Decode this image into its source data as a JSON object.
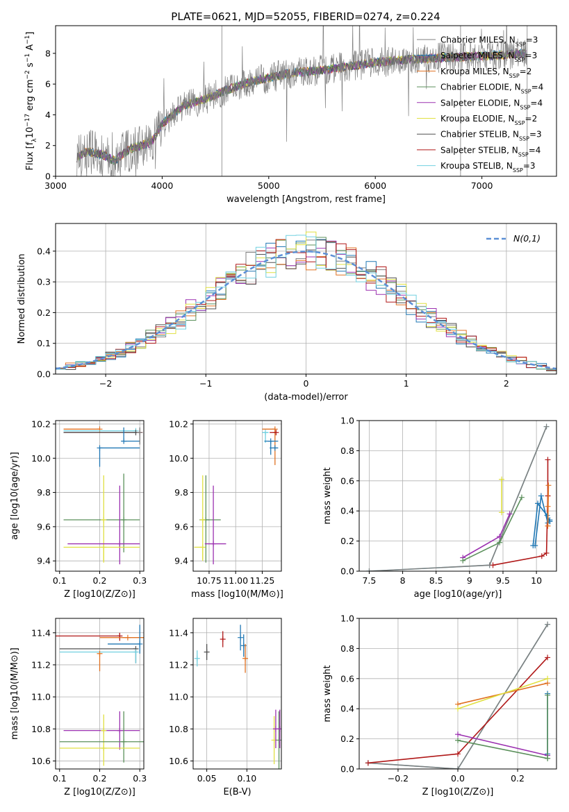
{
  "figure": {
    "title": "PLATE=0621, MJD=52055, FIBERID=0274, z=0.224"
  },
  "series_colors": {
    "Chabrier MILES": "#7f7f7f",
    "Salpeter MILES": "#1f77b4",
    "Kroupa MILES": "#e07020",
    "Chabrier ELODIE": "#5a8f5a",
    "Salpeter ELODIE": "#9b30b0",
    "Kroupa ELODIE": "#e0e040",
    "Chabrier STELIB": "#505050",
    "Salpeter STELIB": "#b01818",
    "Kroupa STELIB": "#70d0e0"
  },
  "chart_data": [
    {
      "id": "spectrum",
      "type": "line",
      "xlabel": "wavelength [Angstrom, rest frame]",
      "ylabel": "Flux [f_λ 10^-17 erg cm^-2 s^-1 A^-1]",
      "xlim": [
        3000,
        7700
      ],
      "ylim": [
        0,
        9.8
      ],
      "xticks": [
        3000,
        4000,
        5000,
        6000,
        7000
      ],
      "yticks": [
        0,
        2,
        4,
        6,
        8
      ],
      "grid": false,
      "legend_position": "right",
      "legend": [
        {
          "name": "Chabrier MILES",
          "n_ssp": "3"
        },
        {
          "name": "Salpeter MILES",
          "n_ssp": "3"
        },
        {
          "name": "Kroupa MILES",
          "n_ssp": "2"
        },
        {
          "name": "Chabrier ELODIE",
          "n_ssp": "4"
        },
        {
          "name": "Salpeter ELODIE",
          "n_ssp": "4"
        },
        {
          "name": "Kroupa ELODIE",
          "n_ssp": "2"
        },
        {
          "name": "Chabrier STELIB",
          "n_ssp": "3"
        },
        {
          "name": "Salpeter STELIB",
          "n_ssp": "4"
        },
        {
          "name": "Kroupa STELIB",
          "n_ssp": "3"
        }
      ],
      "continuum": {
        "x": [
          3200,
          3300,
          3450,
          3550,
          3700,
          3900,
          4000,
          4200,
          4400,
          4600,
          4800,
          5000,
          5200,
          5500,
          5800,
          6000,
          6300,
          6600,
          6900,
          7200,
          7400
        ],
        "y": [
          1.2,
          1.6,
          1.4,
          1.0,
          1.8,
          2.2,
          3.4,
          4.6,
          5.0,
          5.6,
          6.1,
          6.4,
          6.7,
          6.9,
          7.2,
          7.4,
          7.6,
          7.7,
          7.8,
          7.9,
          8.0
        ]
      }
    },
    {
      "id": "residual_histogram",
      "type": "line",
      "xlabel": "(data-model)/error",
      "ylabel": "Normed distribution",
      "xlim": [
        -2.5,
        2.5
      ],
      "ylim": [
        0,
        0.49
      ],
      "xticks": [
        -2,
        -1,
        0,
        1,
        2
      ],
      "yticks": [
        0.0,
        0.1,
        0.2,
        0.3,
        0.4
      ],
      "grid": true,
      "legend_position": "top-right",
      "reference_label": "N(0,1)",
      "bin_width": 0.1,
      "bin_start": -2.5
    },
    {
      "id": "age_vs_Z",
      "type": "scatter",
      "xlabel": "Z [log10(Z/Z⊙)]",
      "ylabel": "age [log10(age/yr)]",
      "xlim": [
        0.09,
        0.31
      ],
      "ylim": [
        9.34,
        10.22
      ],
      "xticks": [
        0.1,
        0.2,
        0.3
      ],
      "yticks": [
        9.4,
        9.6,
        9.8,
        10.0,
        10.2
      ],
      "points": [
        {
          "series": "Kroupa MILES",
          "x": 0.2,
          "y": 10.17,
          "xerr": [
            0.09,
            0.0
          ],
          "yerr": [
            0.0,
            0.0
          ]
        },
        {
          "series": "Salpeter STELIB",
          "x": 0.3,
          "y": 10.15,
          "xerr": [
            0.19,
            0.0
          ],
          "yerr": [
            0.0,
            0.0
          ]
        },
        {
          "series": "Kroupa STELIB",
          "x": 0.29,
          "y": 10.16,
          "xerr": [
            0.18,
            0.0
          ],
          "yerr": [
            0.0,
            0.0
          ]
        },
        {
          "series": "Chabrier STELIB",
          "x": 0.29,
          "y": 10.15,
          "xerr": [
            0.18,
            0.0
          ],
          "yerr": [
            0.0,
            0.0
          ]
        },
        {
          "series": "Salpeter MILES",
          "x": 0.26,
          "y": 10.1,
          "xerr": [
            0.0,
            0.04
          ],
          "yerr": [
            0.0,
            0.08
          ]
        },
        {
          "series": "Chabrier MILES",
          "x": 0.3,
          "y": 10.15,
          "xerr": [
            0.0,
            0.0
          ],
          "yerr": [
            0.07,
            0.03
          ]
        },
        {
          "series": "Salpeter MILES",
          "x": 0.2,
          "y": 10.06,
          "xerr": [
            0.0,
            0.1
          ],
          "yerr": [
            0.11,
            0.0
          ]
        },
        {
          "series": "Chabrier ELODIE",
          "x": 0.26,
          "y": 9.64,
          "xerr": [
            0.15,
            0.04
          ],
          "yerr": [
            0.19,
            0.27
          ]
        },
        {
          "series": "Kroupa ELODIE",
          "x": 0.21,
          "y": 9.64,
          "xerr": [
            0.0,
            0.0
          ],
          "yerr": [
            0.24,
            0.26
          ]
        },
        {
          "series": "Salpeter ELODIE",
          "x": 0.25,
          "y": 9.5,
          "xerr": [
            0.13,
            0.05
          ],
          "yerr": [
            0.12,
            0.34
          ]
        },
        {
          "series": "Kroupa ELODIE",
          "x": 0.21,
          "y": 9.48,
          "xerr": [
            0.1,
            0.09
          ],
          "yerr": [
            0.09,
            0.0
          ]
        }
      ]
    },
    {
      "id": "age_vs_mass",
      "type": "scatter",
      "xlabel": "mass [log10(M/M⊙)]",
      "ylabel": "",
      "xlim": [
        10.6,
        11.43
      ],
      "ylim": [
        9.34,
        10.22
      ],
      "xticks": [
        10.75,
        11.0,
        11.25
      ],
      "xtick_labels": [
        "10.75",
        "11.00",
        "11.25"
      ],
      "yticks": [
        9.4,
        9.6,
        9.8,
        10.0,
        10.2
      ],
      "points": [
        {
          "series": "Kroupa MILES",
          "x": 11.37,
          "y": 10.17,
          "xerr": [
            0.12,
            0.0
          ],
          "yerr": [
            0.21,
            0.0
          ]
        },
        {
          "series": "Salpeter STELIB",
          "x": 11.38,
          "y": 10.15,
          "xerr": [
            0.06,
            0.0
          ],
          "yerr": [
            0.0,
            0.0
          ]
        },
        {
          "series": "Kroupa STELIB",
          "x": 11.28,
          "y": 10.15,
          "xerr": [
            0.03,
            0.03
          ],
          "yerr": [
            0.06,
            0.0
          ]
        },
        {
          "series": "Salpeter MILES",
          "x": 11.33,
          "y": 10.1,
          "xerr": [
            0.06,
            0.07
          ],
          "yerr": [
            0.08,
            0.0
          ]
        },
        {
          "series": "Salpeter MILES",
          "x": 11.37,
          "y": 10.06,
          "xerr": [
            0.05,
            0.03
          ],
          "yerr": [
            0.0,
            0.0
          ]
        },
        {
          "series": "Chabrier ELODIE",
          "x": 10.72,
          "y": 9.64,
          "xerr": [
            0.06,
            0.14
          ],
          "yerr": [
            0.25,
            0.26
          ]
        },
        {
          "series": "Kroupa ELODIE",
          "x": 10.69,
          "y": 9.64,
          "xerr": [
            0.0,
            0.0
          ],
          "yerr": [
            0.24,
            0.26
          ]
        },
        {
          "series": "Salpeter ELODIE",
          "x": 10.79,
          "y": 9.5,
          "xerr": [
            0.08,
            0.12
          ],
          "yerr": [
            0.12,
            0.34
          ]
        },
        {
          "series": "Kroupa ELODIE",
          "x": 10.69,
          "y": 9.48,
          "xerr": [
            0.08,
            0.0
          ],
          "yerr": [
            0.07,
            0.0
          ]
        }
      ]
    },
    {
      "id": "mass_weight_vs_age",
      "type": "line",
      "xlabel": "age [log10(age/yr)]",
      "ylabel": "mass weight",
      "xlim": [
        7.35,
        10.3
      ],
      "ylim": [
        0,
        1.0
      ],
      "xticks": [
        7.5,
        8.0,
        8.5,
        9.0,
        9.5,
        10.0
      ],
      "yticks": [
        0.0,
        0.2,
        0.4,
        0.6,
        0.8,
        1.0
      ],
      "grid": true,
      "series": [
        {
          "name": "Kroupa STELIB",
          "x": [
            7.5,
            9.3,
            10.15
          ],
          "y": [
            0.0,
            0.04,
            0.96
          ]
        },
        {
          "name": "Chabrier MILES",
          "x": [
            7.5,
            9.3,
            10.15
          ],
          "y": [
            0.0,
            0.04,
            0.96
          ]
        },
        {
          "name": "Salpeter STELIB",
          "x": [
            9.35,
            10.08,
            10.15,
            10.17,
            10.17
          ],
          "y": [
            0.04,
            0.1,
            0.12,
            0.5,
            0.74
          ]
        },
        {
          "name": "Salpeter ELODIE",
          "x": [
            8.9,
            9.45,
            9.6
          ],
          "y": [
            0.09,
            0.23,
            0.38
          ]
        },
        {
          "name": "Chabrier ELODIE",
          "x": [
            8.9,
            9.45,
            9.78
          ],
          "y": [
            0.07,
            0.19,
            0.49
          ]
        },
        {
          "name": "Kroupa ELODIE",
          "x": [
            9.48,
            9.48
          ],
          "y": [
            0.39,
            0.61
          ]
        },
        {
          "name": "Salpeter MILES",
          "x": [
            9.98,
            10.07,
            10.17,
            10.2
          ],
          "y": [
            0.17,
            0.5,
            0.32,
            0.34
          ]
        },
        {
          "name": "Salpeter MILES",
          "x": [
            9.95,
            10.02,
            10.16,
            10.2
          ],
          "y": [
            0.17,
            0.45,
            0.37,
            0.33
          ]
        },
        {
          "name": "Kroupa MILES",
          "x": [
            10.17,
            10.18,
            10.17
          ],
          "y": [
            0.3,
            0.57,
            0.43
          ]
        }
      ]
    },
    {
      "id": "mass_vs_Z",
      "type": "scatter",
      "xlabel": "Z [log10(Z/Z⊙)]",
      "ylabel": "mass [log10(M/M⊙)]",
      "xlim": [
        0.09,
        0.31
      ],
      "ylim": [
        10.55,
        11.49
      ],
      "xticks": [
        0.1,
        0.2,
        0.3
      ],
      "yticks": [
        10.6,
        10.8,
        11.0,
        11.2,
        11.4
      ],
      "points": [
        {
          "series": "Salpeter STELIB",
          "x": 0.25,
          "y": 11.38,
          "xerr": [
            0.16,
            0.0
          ],
          "yerr": [
            0.03,
            0.02
          ]
        },
        {
          "series": "Kroupa MILES",
          "x": 0.27,
          "y": 11.37,
          "xerr": [
            0.07,
            0.04
          ],
          "yerr": [
            0.0,
            0.0
          ]
        },
        {
          "series": "Salpeter MILES",
          "x": 0.3,
          "y": 11.33,
          "xerr": [
            0.08,
            0.0
          ],
          "yerr": [
            0.06,
            0.12
          ]
        },
        {
          "series": "Chabrier STELIB",
          "x": 0.29,
          "y": 11.3,
          "xerr": [
            0.19,
            0.0
          ],
          "yerr": [
            0.09,
            0.0
          ]
        },
        {
          "series": "Kroupa STELIB",
          "x": 0.29,
          "y": 11.28,
          "xerr": [
            0.19,
            0.0
          ],
          "yerr": [
            0.07,
            0.0
          ]
        },
        {
          "series": "Kroupa MILES",
          "x": 0.2,
          "y": 11.27,
          "xerr": [
            0.0,
            0.0
          ],
          "yerr": [
            0.11,
            0.0
          ]
        },
        {
          "series": "Salpeter ELODIE",
          "x": 0.25,
          "y": 10.79,
          "xerr": [
            0.14,
            0.05
          ],
          "yerr": [
            0.12,
            0.12
          ]
        },
        {
          "series": "Kroupa ELODIE",
          "x": 0.21,
          "y": 10.79,
          "xerr": [
            0.0,
            0.0
          ],
          "yerr": [
            0.12,
            0.1
          ]
        },
        {
          "series": "Chabrier ELODIE",
          "x": 0.26,
          "y": 10.72,
          "xerr": [
            0.16,
            0.05
          ],
          "yerr": [
            0.13,
            0.19
          ]
        },
        {
          "series": "Kroupa ELODIE",
          "x": 0.21,
          "y": 10.68,
          "xerr": [
            0.11,
            0.09
          ],
          "yerr": [
            0.11,
            0.0
          ]
        }
      ]
    },
    {
      "id": "mass_vs_ebv",
      "type": "scatter",
      "xlabel": "E(B-V)",
      "ylabel": "",
      "xlim": [
        0.033,
        0.143
      ],
      "ylim": [
        10.55,
        11.49
      ],
      "xticks": [
        0.05,
        0.1
      ],
      "xtick_labels": [
        "0.05",
        "0.10"
      ],
      "yticks": [
        10.6,
        10.8,
        11.0,
        11.2,
        11.4
      ],
      "points": [
        {
          "series": "Kroupa STELIB",
          "x": 0.038,
          "y": 11.24,
          "yerr": [
            0.05,
            0.05
          ]
        },
        {
          "series": "Chabrier STELIB",
          "x": 0.05,
          "y": 11.28,
          "yerr": [
            0.05,
            0.05
          ]
        },
        {
          "series": "Salpeter STELIB",
          "x": 0.07,
          "y": 11.36,
          "yerr": [
            0.05,
            0.05
          ]
        },
        {
          "series": "Salpeter MILES",
          "x": 0.092,
          "y": 11.37,
          "yerr": [
            0.08,
            0.08
          ]
        },
        {
          "series": "Salpeter MILES",
          "x": 0.096,
          "y": 11.32,
          "yerr": [
            0.07,
            0.07
          ]
        },
        {
          "series": "Kroupa MILES",
          "x": 0.098,
          "y": 11.24,
          "yerr": [
            0.09,
            0.09
          ]
        },
        {
          "series": "Kroupa ELODIE",
          "x": 0.134,
          "y": 10.73,
          "yerr": [
            0.15,
            0.15
          ]
        },
        {
          "series": "Salpeter ELODIE",
          "x": 0.136,
          "y": 10.8,
          "yerr": [
            0.12,
            0.12
          ]
        },
        {
          "series": "Chabrier ELODIE",
          "x": 0.14,
          "y": 10.73,
          "yerr": [
            0.18,
            0.18
          ]
        },
        {
          "series": "Salpeter ELODIE",
          "x": 0.141,
          "y": 10.8,
          "yerr": [
            0.12,
            0.12
          ]
        }
      ]
    },
    {
      "id": "mass_weight_vs_Z",
      "type": "line",
      "xlabel": "Z [log10(Z/Z⊙)]",
      "ylabel": "mass weight",
      "xlim": [
        -0.33,
        0.33
      ],
      "ylim": [
        0,
        1.0
      ],
      "xticks": [
        -0.2,
        0.0,
        0.2
      ],
      "xtick_labels": [
        "−0.2",
        "0.0",
        "0.2"
      ],
      "yticks": [
        0.0,
        0.2,
        0.4,
        0.6,
        0.8,
        1.0
      ],
      "grid": true,
      "series": [
        {
          "name": "Kroupa STELIB",
          "x": [
            -0.3,
            0.0,
            0.3
          ],
          "y": [
            0.04,
            0.0,
            0.96
          ]
        },
        {
          "name": "Chabrier MILES",
          "x": [
            -0.3,
            0.0,
            0.3
          ],
          "y": [
            0.04,
            0.0,
            0.96
          ]
        },
        {
          "name": "Salpeter STELIB",
          "x": [
            -0.3,
            0.0,
            0.3
          ],
          "y": [
            0.04,
            0.1,
            0.74
          ]
        },
        {
          "name": "Kroupa MILES",
          "x": [
            0.0,
            0.3
          ],
          "y": [
            0.43,
            0.57
          ]
        },
        {
          "name": "Kroupa ELODIE",
          "x": [
            0.0,
            0.3
          ],
          "y": [
            0.4,
            0.6
          ]
        },
        {
          "name": "Salpeter ELODIE",
          "x": [
            0.0,
            0.3
          ],
          "y": [
            0.23,
            0.09
          ]
        },
        {
          "name": "Chabrier ELODIE",
          "x": [
            0.0,
            0.3
          ],
          "y": [
            0.19,
            0.07
          ]
        },
        {
          "name": "Salpeter MILES",
          "x": [
            0.3,
            0.3
          ],
          "y": [
            0.1,
            0.5
          ]
        },
        {
          "name": "Chabrier ELODIE",
          "x": [
            0.3,
            0.3
          ],
          "y": [
            0.07,
            0.49
          ]
        }
      ]
    }
  ]
}
